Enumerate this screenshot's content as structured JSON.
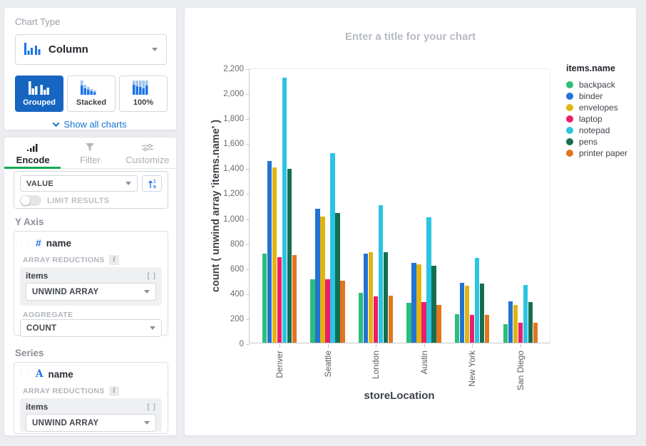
{
  "colors": {
    "accent_blue": "#1665C1",
    "link_blue": "#1374D4",
    "active_tab_green": "#13AA52",
    "field_type_blue": "#1A73E8"
  },
  "chart_type_panel": {
    "label": "Chart Type",
    "selected": "Column",
    "variants": [
      {
        "label": "Grouped",
        "active": true
      },
      {
        "label": "Stacked",
        "active": false
      },
      {
        "label": "100%",
        "active": false
      }
    ],
    "show_all_label": "Show all charts"
  },
  "tabs": [
    {
      "label": "Encode",
      "icon": "bar-chart-icon",
      "active": true
    },
    {
      "label": "Filter",
      "icon": "funnel-icon",
      "active": false
    },
    {
      "label": "Customize",
      "icon": "sliders-icon",
      "active": false
    }
  ],
  "sort_section": {
    "value_label": "VALUE",
    "sort_icon": "numeric-sort-icon",
    "limit_label": "LIMIT RESULTS",
    "limit_on": false
  },
  "y_axis_section": {
    "heading": "Y Axis",
    "field": {
      "type_symbol": "#",
      "name": "name"
    },
    "reductions_label": "ARRAY REDUCTIONS",
    "reduction": {
      "field": "items",
      "brackets": "[ ]",
      "mode": "UNWIND ARRAY"
    },
    "aggregate_label": "AGGREGATE",
    "aggregate_value": "COUNT"
  },
  "series_section": {
    "heading": "Series",
    "field": {
      "type_symbol": "A",
      "name": "name"
    },
    "reductions_label": "ARRAY REDUCTIONS",
    "reduction": {
      "field": "items",
      "brackets": "[ ]",
      "mode": "UNWIND ARRAY"
    }
  },
  "chart_data": {
    "type": "bar",
    "variant": "grouped",
    "title_placeholder": "Enter a title for your chart",
    "xlabel": "storeLocation",
    "ylabel": "count ( unwind array 'items.name' )",
    "ylim": [
      0,
      2200
    ],
    "ytick_step": 200,
    "grid": false,
    "legend_position": "right",
    "legend_title": "items.name",
    "categories": [
      "Denver",
      "Seattle",
      "London",
      "Austin",
      "New York",
      "San Diego"
    ],
    "series": [
      {
        "name": "backpack",
        "color": "#2BBE78",
        "values": [
          715,
          505,
          400,
          320,
          228,
          150
        ]
      },
      {
        "name": "binder",
        "color": "#2173D6",
        "values": [
          1455,
          1070,
          712,
          640,
          478,
          332
        ]
      },
      {
        "name": "envelopes",
        "color": "#E2B411",
        "values": [
          1400,
          1010,
          726,
          625,
          456,
          302
        ]
      },
      {
        "name": "laptop",
        "color": "#ED1D69",
        "values": [
          685,
          510,
          370,
          325,
          225,
          160
        ]
      },
      {
        "name": "notepad",
        "color": "#2BC4E2",
        "values": [
          2120,
          1515,
          1100,
          1005,
          681,
          463
        ]
      },
      {
        "name": "pens",
        "color": "#156E52",
        "values": [
          1390,
          1035,
          724,
          615,
          475,
          327
        ]
      },
      {
        "name": "printer paper",
        "color": "#E2761F",
        "values": [
          700,
          495,
          378,
          305,
          222,
          161
        ]
      }
    ]
  }
}
